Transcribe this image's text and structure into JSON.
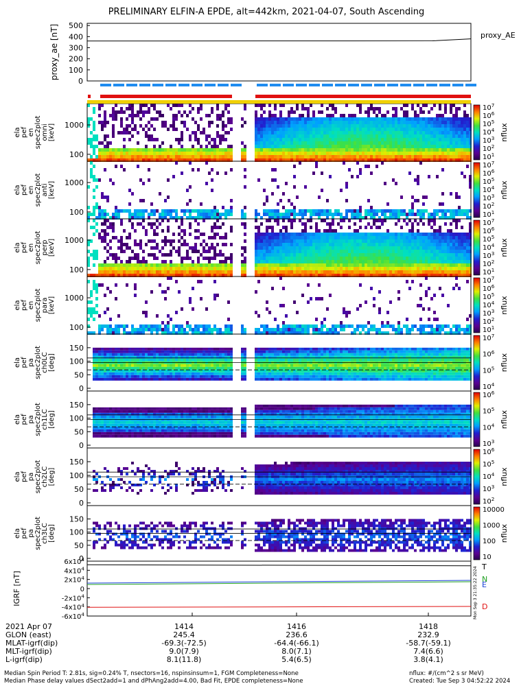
{
  "title": "PRELIMINARY ELFIN-A EPDE, alt=442km, 2021-04-07, South Ascending",
  "colors": {
    "frame": "#000000",
    "bar_blue": "#1f8cf0",
    "bar_red": "#e01010",
    "bar_yellow": "#f0d000",
    "T_line": "#000000",
    "N_line": "#1fa020",
    "E_line": "#1840d8",
    "D_line": "#e01010"
  },
  "chart_data": [
    {
      "type": "line",
      "ylabel": "proxy_ae [nT]",
      "yticks": [
        "500",
        "400",
        "300",
        "200",
        "100",
        "0"
      ],
      "ylim": [
        0,
        520
      ],
      "legend": "proxy_AE",
      "series": [
        {
          "name": "proxy_AE",
          "x": [
            0,
            0.9,
            1.0
          ],
          "values": [
            360,
            362,
            380
          ]
        }
      ]
    },
    {
      "type": "heatmap",
      "ylabel": [
        "ela",
        "pef",
        "en",
        "spec2plot",
        "omni",
        "[keV]"
      ],
      "yticks": [
        "1000",
        "100"
      ],
      "scale": "log",
      "colorbar_ticks": [
        "10^7",
        "10^6",
        "10^5",
        "10^4",
        "10^3",
        "10^2",
        "10^1"
      ],
      "colorbar_label": "nflux"
    },
    {
      "type": "heatmap",
      "ylabel": [
        "ela",
        "pef",
        "en",
        "spec2plot",
        "anti",
        "[keV]"
      ],
      "yticks": [
        "1000",
        "100"
      ],
      "scale": "log",
      "colorbar_ticks": [
        "10^7",
        "10^6",
        "10^5",
        "10^4",
        "10^3",
        "10^2",
        "10^1"
      ],
      "colorbar_label": "nflux"
    },
    {
      "type": "heatmap",
      "ylabel": [
        "ela",
        "pef",
        "en",
        "spec2plot",
        "perp",
        "[keV]"
      ],
      "yticks": [
        "1000",
        "100"
      ],
      "scale": "log",
      "colorbar_ticks": [
        "10^7",
        "10^6",
        "10^5",
        "10^4",
        "10^3",
        "10^2",
        "10^1"
      ],
      "colorbar_label": "nflux"
    },
    {
      "type": "heatmap",
      "ylabel": [
        "ela",
        "pef",
        "en",
        "spec2plot",
        "para",
        "[keV]"
      ],
      "yticks": [
        "1000",
        "100"
      ],
      "scale": "log",
      "colorbar_ticks": [
        "10^7",
        "10^6",
        "10^5",
        "10^4",
        "10^3",
        "10^2",
        "10^1"
      ],
      "colorbar_label": "nflux"
    },
    {
      "type": "heatmap",
      "ylabel": [
        "ela",
        "pef",
        "pa",
        "spec2plot",
        "ch0LC",
        "[deg]"
      ],
      "yticks": [
        "150",
        "100",
        "50",
        "0"
      ],
      "colorbar_ticks": [
        "10^7",
        "10^6",
        "10^5",
        "10^4"
      ],
      "colorbar_label": "nflux"
    },
    {
      "type": "heatmap",
      "ylabel": [
        "ela",
        "pef",
        "pa",
        "spec2plot",
        "ch1LC",
        "[deg]"
      ],
      "yticks": [
        "150",
        "100",
        "50",
        "0"
      ],
      "colorbar_ticks": [
        "10^6",
        "10^5",
        "10^4",
        "10^3"
      ],
      "colorbar_label": "nflux"
    },
    {
      "type": "heatmap",
      "ylabel": [
        "ela",
        "pef",
        "pa",
        "spec2plot",
        "ch2LC",
        "[deg]"
      ],
      "yticks": [
        "150",
        "100",
        "50",
        "0"
      ],
      "colorbar_ticks": [
        "10^6",
        "10^5",
        "10^4",
        "10^3",
        "10^2"
      ],
      "colorbar_label": "nflux"
    },
    {
      "type": "heatmap",
      "ylabel": [
        "ela",
        "pef",
        "pa",
        "spec2plot",
        "ch3LC",
        "[deg]"
      ],
      "yticks": [
        "150",
        "100",
        "50",
        "0"
      ],
      "colorbar_ticks": [
        "10000",
        "1000",
        "100",
        "10"
      ],
      "colorbar_label": "nflux"
    },
    {
      "type": "line",
      "ylabel": "IGRF [nT]",
      "yticks": [
        "6x10^4",
        "4x10^4",
        "2x10^4",
        "0",
        "-2x10^4",
        "-4x10^4",
        "-6x10^4"
      ],
      "ylim": [
        -60000,
        60000
      ],
      "legend": [
        "T",
        "N",
        "E",
        "D"
      ],
      "series": [
        {
          "name": "T",
          "x": [
            0,
            1
          ],
          "values": [
            52000,
            50000
          ]
        },
        {
          "name": "N",
          "x": [
            0,
            1
          ],
          "values": [
            9000,
            15000
          ]
        },
        {
          "name": "E",
          "x": [
            0,
            1
          ],
          "values": [
            12000,
            18000
          ]
        },
        {
          "name": "D",
          "x": [
            0,
            1
          ],
          "values": [
            -41000,
            -39000
          ]
        }
      ]
    }
  ],
  "sidebar_stamp": "Mon Sep 3 21:35:22 2024",
  "footer": {
    "date": "2021 Apr 07",
    "times": [
      "1414",
      "1416",
      "1418"
    ],
    "rows": [
      {
        "label": "GLON (east)",
        "values": [
          "245.4",
          "236.6",
          "232.9"
        ]
      },
      {
        "label": "MLAT-igrf(dip)",
        "values": [
          "-69.3(-72.5)",
          "-64.4(-66.1)",
          "-58.7(-59.1)"
        ]
      },
      {
        "label": "MLT-igrf(dip)",
        "values": [
          "9.0(7.9)",
          "8.0(7.1)",
          "7.4(6.6)"
        ]
      },
      {
        "label": "L-igrf(dip)",
        "values": [
          "8.1(11.8)",
          "5.4(6.5)",
          "3.8(4.1)"
        ]
      }
    ],
    "note1": "Median Spin Period T: 2.81s, sig=0.24% T, nsectors=16, nspinsinsum=1, FGM Completeness=None",
    "note2": "Median Phase delay values dSect2add=1 and dPhAng2add=4.00, Bad Fit, EPDE completeness=None",
    "units": "nflux: #/(cm^2 s sr MeV)",
    "created": "Created: Tue Sep  3 04:52:22 2024"
  }
}
